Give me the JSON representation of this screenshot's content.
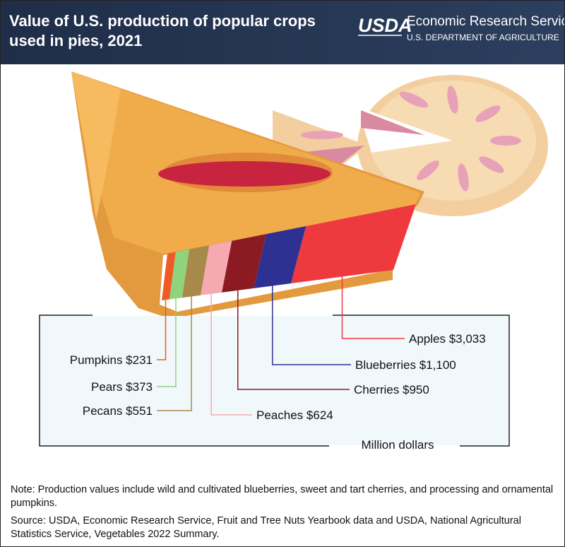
{
  "chart_data": {
    "type": "stacked-slice",
    "title": "Value of U.S. production of popular crops used in pies, 2021",
    "logo": "USDA",
    "agency": "Economic Research Service",
    "department": "U.S. DEPARTMENT OF AGRICULTURE",
    "unit_label": "Million dollars",
    "categories": [
      "Pumpkins",
      "Pears",
      "Pecans",
      "Peaches",
      "Cherries",
      "Blueberries",
      "Apples"
    ],
    "values": [
      231,
      373,
      551,
      624,
      950,
      1100,
      3033
    ],
    "value_labels": [
      "$231",
      "$373",
      "$551",
      "$624",
      "$950",
      "$1,100",
      "$3,033"
    ],
    "colors": [
      "#f05a24",
      "#8fd47c",
      "#a7894a",
      "#f6a9b1",
      "#8c1a22",
      "#2e3192",
      "#ee3a3f"
    ],
    "note": "Note: Production values include wild and cultivated blueberries, sweet and tart cherries, and processing and ornamental pumpkins.",
    "source": "Source: USDA, Economic Research Service, Fruit and Tree Nuts Yearbook data and USDA, National Agricultural Statistics Service, Vegetables 2022 Summary."
  }
}
